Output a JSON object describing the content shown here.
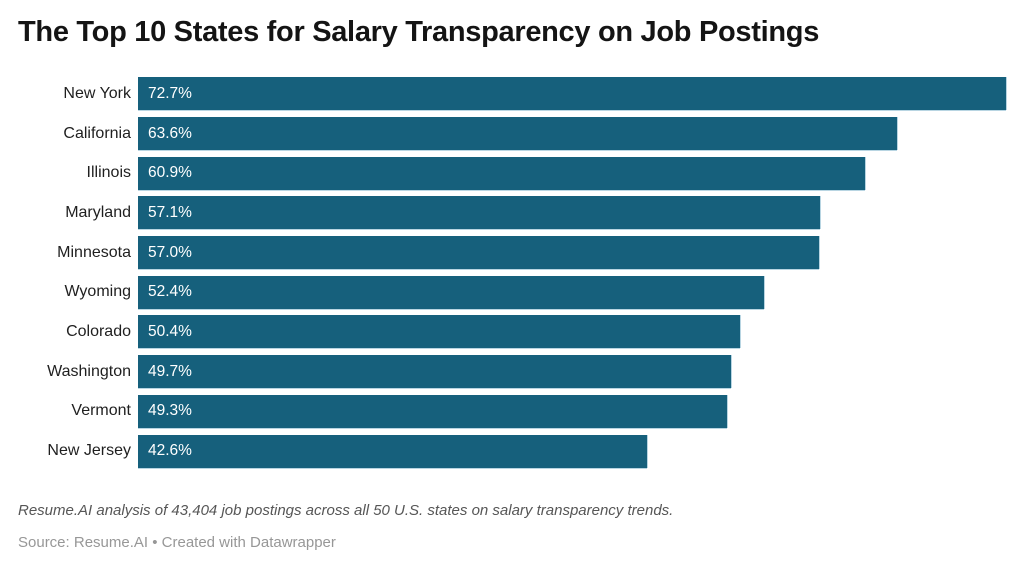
{
  "header": {
    "title": "The Top 10 States for Salary Transparency on Job Postings"
  },
  "chart_data": {
    "type": "bar",
    "orientation": "horizontal",
    "categories": [
      "New York",
      "California",
      "Illinois",
      "Maryland",
      "Minnesota",
      "Wyoming",
      "Colorado",
      "Washington",
      "Vermont",
      "New Jersey"
    ],
    "values": [
      72.7,
      63.6,
      60.9,
      57.1,
      57.0,
      52.4,
      50.4,
      49.7,
      49.3,
      42.6
    ],
    "value_labels": [
      "72.7%",
      "63.6%",
      "60.9%",
      "57.1%",
      "57.0%",
      "52.4%",
      "50.4%",
      "49.7%",
      "49.3%",
      "42.6%"
    ],
    "title": "The Top 10 States for Salary Transparency on Job Postings",
    "xlabel": "",
    "ylabel": "",
    "xlim": [
      0,
      72.7
    ],
    "grid": false,
    "legend": false,
    "bar_color": "#16607C",
    "value_label_color": "#ffffff",
    "value_label_position": "inside-left"
  },
  "footer": {
    "footnote": "Resume.AI analysis of 43,404 job postings across all 50 U.S. states on salary transparency trends.",
    "source": "Source: Resume.AI • Created with Datawrapper"
  }
}
